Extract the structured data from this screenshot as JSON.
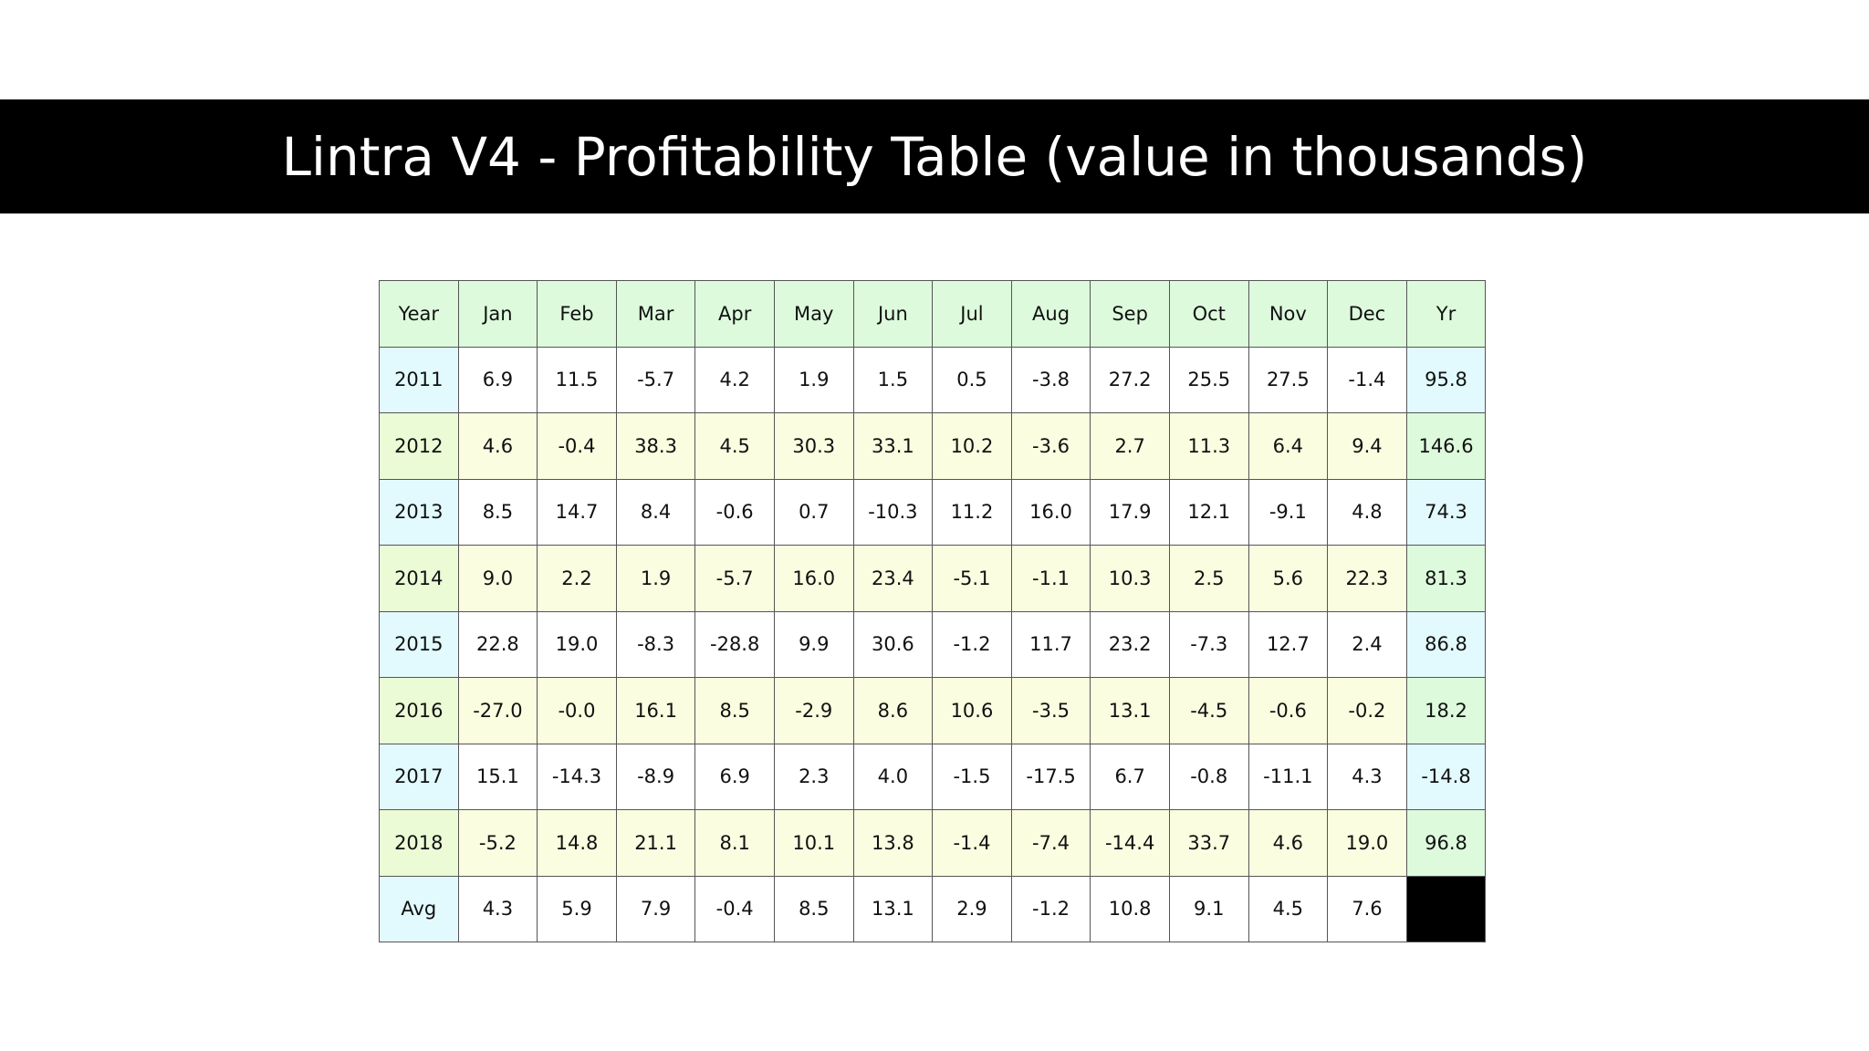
{
  "title": "Lintra V4 - Profitability Table (value in thousands)",
  "table": {
    "headers": [
      "Year",
      "Jan",
      "Feb",
      "Mar",
      "Apr",
      "May",
      "Jun",
      "Jul",
      "Aug",
      "Sep",
      "Oct",
      "Nov",
      "Dec",
      "Yr"
    ],
    "rows": [
      {
        "year": "2011",
        "values": [
          "6.9",
          "11.5",
          "-5.7",
          "4.2",
          "1.9",
          "1.5",
          "0.5",
          "-3.8",
          "27.2",
          "25.5",
          "27.5",
          "-1.4"
        ],
        "yr": "95.8"
      },
      {
        "year": "2012",
        "values": [
          "4.6",
          "-0.4",
          "38.3",
          "4.5",
          "30.3",
          "33.1",
          "10.2",
          "-3.6",
          "2.7",
          "11.3",
          "6.4",
          "9.4"
        ],
        "yr": "146.6"
      },
      {
        "year": "2013",
        "values": [
          "8.5",
          "14.7",
          "8.4",
          "-0.6",
          "0.7",
          "-10.3",
          "11.2",
          "16.0",
          "17.9",
          "12.1",
          "-9.1",
          "4.8"
        ],
        "yr": "74.3"
      },
      {
        "year": "2014",
        "values": [
          "9.0",
          "2.2",
          "1.9",
          "-5.7",
          "16.0",
          "23.4",
          "-5.1",
          "-1.1",
          "10.3",
          "2.5",
          "5.6",
          "22.3"
        ],
        "yr": "81.3"
      },
      {
        "year": "2015",
        "values": [
          "22.8",
          "19.0",
          "-8.3",
          "-28.8",
          "9.9",
          "30.6",
          "-1.2",
          "11.7",
          "23.2",
          "-7.3",
          "12.7",
          "2.4"
        ],
        "yr": "86.8"
      },
      {
        "year": "2016",
        "values": [
          "-27.0",
          "-0.0",
          "16.1",
          "8.5",
          "-2.9",
          "8.6",
          "10.6",
          "-3.5",
          "13.1",
          "-4.5",
          "-0.6",
          "-0.2"
        ],
        "yr": "18.2"
      },
      {
        "year": "2017",
        "values": [
          "15.1",
          "-14.3",
          "-8.9",
          "6.9",
          "2.3",
          "4.0",
          "-1.5",
          "-17.5",
          "6.7",
          "-0.8",
          "-11.1",
          "4.3"
        ],
        "yr": "-14.8"
      },
      {
        "year": "2018",
        "values": [
          "-5.2",
          "14.8",
          "21.1",
          "8.1",
          "10.1",
          "13.8",
          "-1.4",
          "-7.4",
          "-14.4",
          "33.7",
          "4.6",
          "19.0"
        ],
        "yr": "96.8"
      }
    ],
    "avg": {
      "label": "Avg",
      "values": [
        "4.3",
        "5.9",
        "7.9",
        "-0.4",
        "8.5",
        "13.1",
        "2.9",
        "-1.2",
        "10.8",
        "9.1",
        "4.5",
        "7.6"
      ]
    }
  },
  "colors": {
    "title_bar": "#000000",
    "header_bg": "#ddfadd",
    "year_bg": "#e2fafd",
    "alt_row_bg": "#fbfde0"
  }
}
